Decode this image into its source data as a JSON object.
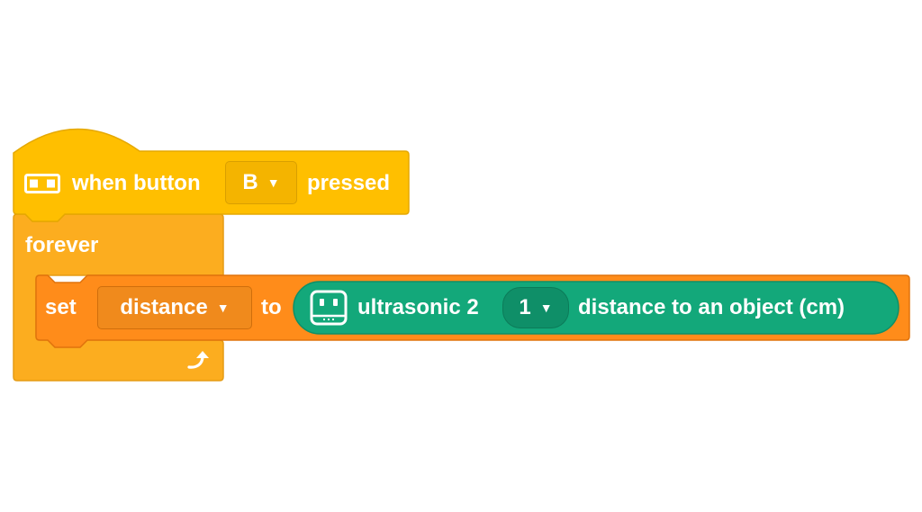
{
  "blocks": {
    "hat": {
      "icon": "button-board-icon",
      "prefix": "when button",
      "button_value": "B",
      "suffix": "pressed",
      "color": "#ffbf00"
    },
    "loop": {
      "label": "forever",
      "loop_arrow_icon": "loop-arrow-icon",
      "color": "#fcad1f"
    },
    "set_block": {
      "prefix": "set",
      "variable": "distance",
      "middle": "to",
      "color": "#ff8c1a"
    },
    "sensor_reporter": {
      "icon": "ultrasonic-sensor-icon",
      "label": "ultrasonic 2",
      "port_value": "1",
      "suffix": "distance to an object (cm)",
      "color": "#13a87a"
    },
    "dropdown_caret": "▼"
  }
}
